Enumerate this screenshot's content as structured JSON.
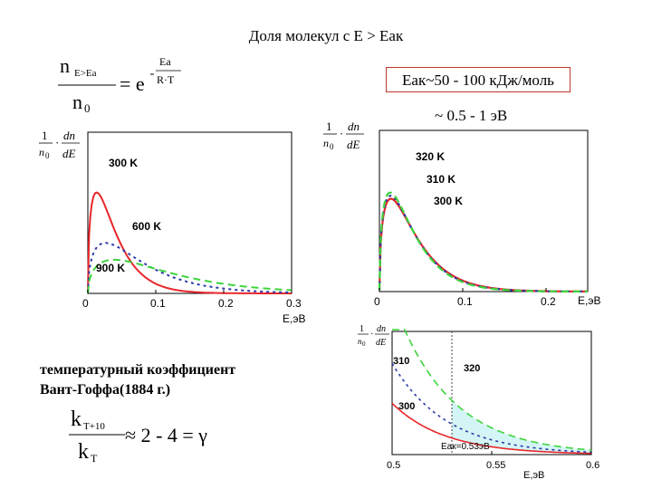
{
  "title": "Доля молекул с Е > Еак",
  "formula_boltzmann": {
    "n": "n",
    "sub": "E>Eа",
    "eq": "= e",
    "exp_num": "Eа",
    "exp_den": "R·T",
    "den": "n",
    "den_sub": "0"
  },
  "ea_box": "Еак~50 - 100 кДж/моль",
  "ev_range": "~ 0.5 - 1 эВ",
  "coeff_text": [
    "температурный коэффициент",
    "Вант-Гоффа(1884 г.)"
  ],
  "formula_vant_hoff": {
    "num": "k",
    "num_sub": "T+10",
    "den": "k",
    "den_sub": "T",
    "rhs": "≈ 2 - 4 = γ"
  },
  "ylabel": {
    "one": "1",
    "n0": "n",
    "n0_sub": "0",
    "dn": "dn",
    "dE": "dE"
  },
  "colors": {
    "red": "#e8262a",
    "blue": "#2b3aa6",
    "green": "#3cd43c",
    "shade": "#d4f5f5"
  },
  "chart_data": [
    {
      "type": "line",
      "xlabel": "E,эВ",
      "xlim": [
        0,
        0.3
      ],
      "x_ticks": [
        "0",
        "0.1",
        "0.2",
        "0.3"
      ],
      "series": [
        {
          "name": "300 K",
          "T": 300,
          "style": "solid",
          "color": "#e8262a"
        },
        {
          "name": "600 K",
          "T": 600,
          "style": "dotted",
          "color": "#2b3aa6"
        },
        {
          "name": "900 K",
          "T": 900,
          "style": "dashed",
          "color": "#3cd43c"
        }
      ]
    },
    {
      "type": "line",
      "xlabel": "E,эВ",
      "xlim": [
        0,
        0.25
      ],
      "x_ticks": [
        "0",
        "0.1",
        "0.2"
      ],
      "series": [
        {
          "name": "320 K",
          "T": 320,
          "style": "solid",
          "color": "#e8262a"
        },
        {
          "name": "310 K",
          "T": 310,
          "style": "dotted",
          "color": "#2b3aa6"
        },
        {
          "name": "300 K",
          "T": 300,
          "style": "dashed",
          "color": "#3cd43c"
        }
      ]
    },
    {
      "type": "line",
      "xlabel": "E,эВ",
      "xlim": [
        0.5,
        0.6
      ],
      "x_ticks": [
        "0.5",
        "0.55",
        "0.6"
      ],
      "annotation": {
        "label": "Еак=0.53эВ",
        "x": 0.53
      },
      "series": [
        {
          "name": "300",
          "T": 300,
          "style": "solid",
          "color": "#e8262a"
        },
        {
          "name": "310",
          "T": 310,
          "style": "dotted",
          "color": "#2b3aa6"
        },
        {
          "name": "320",
          "T": 320,
          "style": "dashed",
          "color": "#3cd43c"
        }
      ]
    }
  ]
}
